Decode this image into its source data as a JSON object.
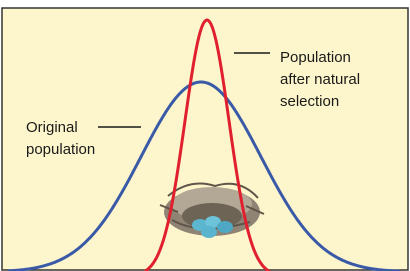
{
  "labels": {
    "after_selection": [
      "Population",
      "after natural",
      "selection"
    ],
    "original": [
      "Original",
      "population"
    ]
  }
}
